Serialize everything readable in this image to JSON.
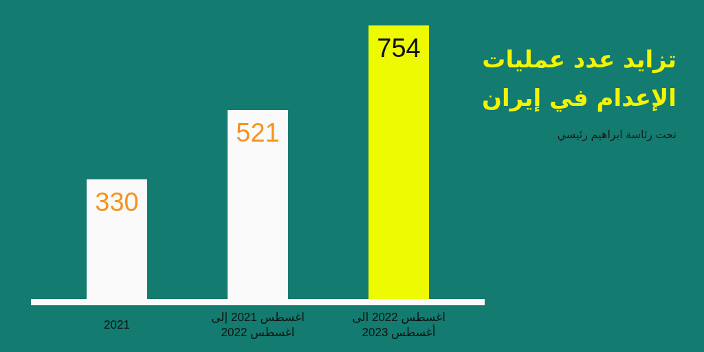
{
  "chart_data": {
    "type": "bar",
    "title": "تزايد عدد عمليات الإعدام في إيران",
    "subtitle": "تحت رئاسة ابراهيم رئيسي",
    "categories": [
      "2021",
      "اغسطس 2021 إلى اغسطس 2022",
      "اغسطس 2022 الى أغسطس 2023"
    ],
    "values": [
      330,
      521,
      754
    ],
    "colors": [
      "#fafafa",
      "#fafafa",
      "#eefa00"
    ],
    "data_labels": true
  }
}
